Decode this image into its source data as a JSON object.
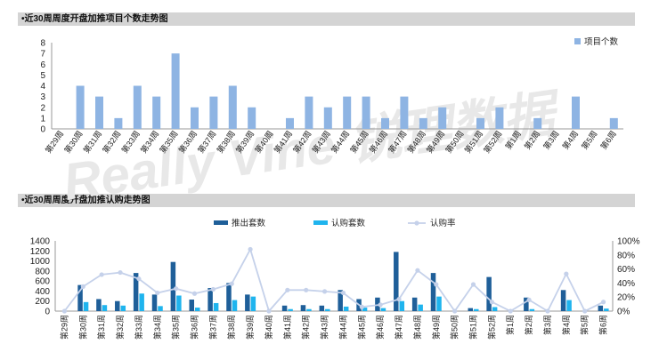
{
  "watermark": "Really Vine 锐理数据",
  "charts": {
    "count_title": "•近30周周度开盘加推项目个数走势图",
    "sales_title": "•近30周周度开盘加推认购走势图"
  },
  "chart_data": [
    {
      "type": "bar",
      "title": "•近30周周度开盘加推项目个数走势图",
      "categories": [
        "第29周",
        "第30周",
        "第31周",
        "第32周",
        "第33周",
        "第34周",
        "第35周",
        "第36周",
        "第37周",
        "第38周",
        "第39周",
        "第40周",
        "第41周",
        "第42周",
        "第43周",
        "第44周",
        "第45周",
        "第46周",
        "第47周",
        "第48周",
        "第49周",
        "第50周",
        "第51周",
        "第52周",
        "第1周",
        "第2周",
        "第3周",
        "第4周",
        "第5周",
        "第6周"
      ],
      "series": [
        {
          "name": "项目个数",
          "color": "#8eb4e3",
          "values": [
            0,
            4,
            3,
            1,
            4,
            3,
            7,
            2,
            3,
            4,
            2,
            0,
            1,
            3,
            2,
            3,
            3,
            1,
            3,
            1,
            2,
            0,
            1,
            2,
            0,
            1,
            0,
            3,
            0,
            1
          ]
        }
      ],
      "ylim": [
        0,
        8
      ],
      "yticks": [
        0,
        1,
        2,
        3,
        4,
        5,
        6,
        7,
        8
      ],
      "legend": "top-right"
    },
    {
      "type": "bar",
      "title": "•近30周周度开盘加推认购走势图",
      "categories": [
        "第29周",
        "第30周",
        "第31周",
        "第32周",
        "第33周",
        "第34周",
        "第35周",
        "第36周",
        "第37周",
        "第38周",
        "第39周",
        "第40周",
        "第41周",
        "第42周",
        "第43周",
        "第44周",
        "第45周",
        "第46周",
        "第47周",
        "第48周",
        "第49周",
        "第50周",
        "第51周",
        "第52周",
        "第1周",
        "第2周",
        "第3周",
        "第4周",
        "第5周",
        "第6周"
      ],
      "series": [
        {
          "name": "推出套数",
          "color": "#1f5f99",
          "values": [
            0,
            520,
            240,
            200,
            760,
            330,
            980,
            230,
            460,
            560,
            330,
            0,
            110,
            120,
            110,
            420,
            240,
            270,
            1180,
            270,
            760,
            0,
            60,
            680,
            0,
            270,
            0,
            420,
            0,
            110
          ]
        },
        {
          "name": "认购套数",
          "color": "#1fb4ee",
          "values": [
            0,
            180,
            120,
            110,
            350,
            100,
            310,
            70,
            160,
            220,
            290,
            0,
            40,
            40,
            40,
            90,
            70,
            60,
            200,
            130,
            290,
            0,
            40,
            80,
            0,
            40,
            0,
            220,
            0,
            50
          ]
        },
        {
          "name": "认购率",
          "color": "#c5d1ea",
          "axis": "right",
          "type": "line",
          "values": [
            0,
            0.35,
            0.52,
            0.55,
            0.46,
            0.26,
            0.32,
            0.25,
            0.31,
            0.39,
            0.88,
            0,
            0.3,
            0.3,
            0.28,
            0.26,
            0.06,
            0.09,
            0.17,
            0.58,
            0.38,
            0,
            0.38,
            0.13,
            0,
            0.16,
            0,
            0.53,
            0,
            0.13
          ]
        }
      ],
      "ylim": [
        0,
        1400
      ],
      "yticks": [
        0,
        200,
        400,
        600,
        800,
        1000,
        1200,
        1400
      ],
      "y2lim": [
        0,
        1
      ],
      "y2ticks": [
        "0%",
        "20%",
        "40%",
        "60%",
        "80%",
        "100%"
      ],
      "legend": "top"
    }
  ]
}
